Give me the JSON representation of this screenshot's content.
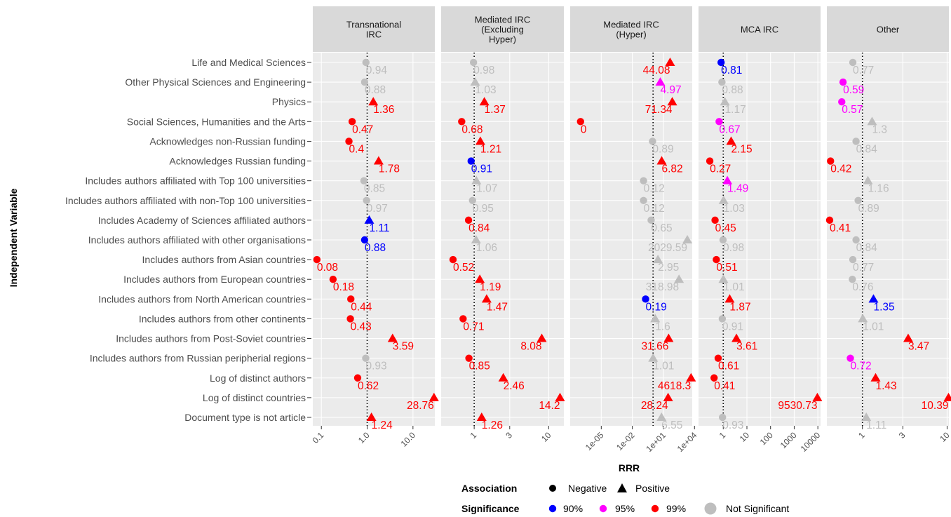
{
  "chart_data": {
    "type": "scatter",
    "y_axis_title": "Independent Variable",
    "x_axis_title": "RRR",
    "variables": [
      "Life and Medical Sciences",
      "Other Physical Sciences and Engineering",
      "Physics",
      "Social Sciences, Humanities and the Arts",
      "Acknowledges non-Russian funding",
      "Acknowledges Russian funding",
      "Includes authors affiliated with Top 100 universities",
      "Includes authors affiliated with non-Top 100 universities",
      "Includes Academy of Sciences affiliated authors",
      "Includes authors affiliated with other organisations",
      "Includes authors from Asian countries",
      "Includes authors from European countries",
      "Includes authors from North American countries",
      "Includes authors from other continents",
      "Includes authors from Post-Soviet countries",
      "Includes authors from Russian peripherial regions",
      "Log of distinct authors",
      "Log of distinct countries",
      "Document type is not article"
    ],
    "legend": {
      "association": {
        "title": "Association",
        "items": [
          {
            "label": "Negative",
            "shape": "circle"
          },
          {
            "label": "Positive",
            "shape": "triangle"
          }
        ]
      },
      "significance": {
        "title": "Significance",
        "items": [
          {
            "label": "90%",
            "color": "#0000ff"
          },
          {
            "label": "95%",
            "color": "#ff00ff"
          },
          {
            "label": "99%",
            "color": "#ff0000"
          },
          {
            "label": "Not Significant",
            "color": "#bebebe"
          }
        ]
      }
    },
    "panels": [
      {
        "title": "Transnational\nIRC",
        "scale": "log",
        "xlim": [
          0.065,
          30
        ],
        "ticks": [
          {
            "value": 0.1,
            "label": "0.1"
          },
          {
            "value": 1,
            "label": "1.0"
          },
          {
            "value": 10,
            "label": "10.0"
          }
        ],
        "points": [
          [
            0.94,
            "ns"
          ],
          [
            0.88,
            "ns"
          ],
          [
            1.36,
            "99"
          ],
          [
            0.47,
            "99"
          ],
          [
            0.4,
            "99"
          ],
          [
            1.78,
            "99"
          ],
          [
            0.85,
            "ns"
          ],
          [
            0.97,
            "ns"
          ],
          [
            1.11,
            "90"
          ],
          [
            0.88,
            "90"
          ],
          [
            0.08,
            "99"
          ],
          [
            0.18,
            "99"
          ],
          [
            0.44,
            "99"
          ],
          [
            0.43,
            "99"
          ],
          [
            3.59,
            "99"
          ],
          [
            0.93,
            "ns"
          ],
          [
            0.62,
            "99"
          ],
          [
            28.76,
            "99"
          ],
          [
            1.24,
            "99"
          ]
        ],
        "labels": [
          "0.94",
          "0.88",
          "1.36",
          "0.47",
          "0.4",
          "1.78",
          "0.85",
          "0.97",
          "1.11",
          "0.88",
          "0.08",
          "0.18",
          "0.44",
          "0.43",
          "3.59",
          "0.93",
          "0.62",
          "28.76",
          "1.24"
        ]
      },
      {
        "title": "Mediated IRC\n(Excluding\nHyper)",
        "scale": "log",
        "xlim": [
          0.36,
          16
        ],
        "ticks": [
          {
            "value": 1,
            "label": "1"
          },
          {
            "value": 3,
            "label": "3"
          },
          {
            "value": 10,
            "label": "10"
          }
        ],
        "points": [
          [
            0.98,
            "ns"
          ],
          [
            1.03,
            "ns"
          ],
          [
            1.37,
            "99"
          ],
          [
            0.68,
            "99"
          ],
          [
            1.21,
            "99"
          ],
          [
            0.91,
            "90"
          ],
          [
            1.07,
            "ns"
          ],
          [
            0.95,
            "ns"
          ],
          [
            0.84,
            "99"
          ],
          [
            1.06,
            "ns"
          ],
          [
            0.52,
            "99"
          ],
          [
            1.19,
            "99"
          ],
          [
            1.47,
            "99"
          ],
          [
            0.71,
            "99"
          ],
          [
            8.08,
            "99"
          ],
          [
            0.85,
            "99"
          ],
          [
            2.46,
            "99"
          ],
          [
            14.2,
            "99"
          ],
          [
            1.26,
            "99"
          ]
        ],
        "labels": [
          "0.98",
          "1.03",
          "1.37",
          "0.68",
          "1.21",
          "0.91",
          "1.07",
          "0.95",
          "0.84",
          "1.06",
          "0.52",
          "1.19",
          "1.47",
          "0.71",
          "8.08",
          "0.85",
          "2.46",
          "14.2",
          "1.26"
        ]
      },
      {
        "title": "Mediated IRC\n(Hyper)",
        "scale": "log",
        "xlim": [
          1e-08,
          6000.0
        ],
        "ticks": [
          {
            "value": 1e-05,
            "label": "1e-05"
          },
          {
            "value": 0.01,
            "label": "1e-02"
          },
          {
            "value": 10,
            "label": "1e+01"
          },
          {
            "value": 10000.0,
            "label": "1e+04"
          }
        ],
        "points": [
          [
            44.08,
            "99"
          ],
          [
            4.97,
            "95"
          ],
          [
            71.34,
            "99"
          ],
          [
            1e-07,
            "99"
          ],
          [
            0.89,
            "ns"
          ],
          [
            6.82,
            "99"
          ],
          [
            0.12,
            "ns"
          ],
          [
            0.12,
            "ns"
          ],
          [
            0.65,
            "ns"
          ],
          [
            2029.59,
            "ns"
          ],
          [
            2.95,
            "ns"
          ],
          [
            318.98,
            "ns"
          ],
          [
            0.19,
            "90"
          ],
          [
            1.6,
            "ns"
          ],
          [
            31.66,
            "99"
          ],
          [
            1.01,
            "ns"
          ],
          [
            4618.3,
            "99"
          ],
          [
            28.24,
            "99"
          ],
          [
            6.55,
            "ns"
          ]
        ],
        "labels": [
          "44.08",
          "4.97",
          "71.34",
          "0",
          "0.89",
          "6.82",
          "0.12",
          "0.12",
          "0.65",
          "2029.59",
          "2.95",
          "318.98",
          "0.19",
          "1.6",
          "31.66",
          "1.01",
          "4618.3",
          "28.24",
          "6.55"
        ]
      },
      {
        "title": "MCA IRC",
        "scale": "log",
        "xlim": [
          0.09,
          13000
        ],
        "ticks": [
          {
            "value": 1,
            "label": "1"
          },
          {
            "value": 10,
            "label": "10"
          },
          {
            "value": 100,
            "label": "100"
          },
          {
            "value": 1000,
            "label": "1000"
          },
          {
            "value": 10000,
            "label": "10000"
          }
        ],
        "points": [
          [
            0.81,
            "90"
          ],
          [
            0.88,
            "ns"
          ],
          [
            1.17,
            "ns"
          ],
          [
            0.67,
            "95"
          ],
          [
            2.15,
            "99"
          ],
          [
            0.27,
            "99"
          ],
          [
            1.49,
            "95"
          ],
          [
            1.03,
            "ns"
          ],
          [
            0.45,
            "99"
          ],
          [
            0.98,
            "ns"
          ],
          [
            0.51,
            "99"
          ],
          [
            1.01,
            "ns"
          ],
          [
            1.87,
            "99"
          ],
          [
            0.91,
            "ns"
          ],
          [
            3.61,
            "99"
          ],
          [
            0.61,
            "99"
          ],
          [
            0.41,
            "99"
          ],
          [
            9530.73,
            "99"
          ],
          [
            0.93,
            "ns"
          ]
        ],
        "labels": [
          "0.81",
          "0.88",
          "1.17",
          "0.67",
          "2.15",
          "0.27",
          "1.49",
          "1.03",
          "0.45",
          "0.98",
          "0.51",
          "1.01",
          "1.87",
          "0.91",
          "3.61",
          "0.61",
          "0.41",
          "9530.73",
          "0.93"
        ]
      },
      {
        "title": "Other",
        "scale": "log",
        "xlim": [
          0.38,
          10.5
        ],
        "ticks": [
          {
            "value": 1,
            "label": "1"
          },
          {
            "value": 3,
            "label": "3"
          },
          {
            "value": 10,
            "label": "10"
          }
        ],
        "points": [
          [
            0.77,
            "ns"
          ],
          [
            0.59,
            "95"
          ],
          [
            0.57,
            "95"
          ],
          [
            1.3,
            "ns"
          ],
          [
            0.84,
            "ns"
          ],
          [
            0.42,
            "99"
          ],
          [
            1.16,
            "ns"
          ],
          [
            0.89,
            "ns"
          ],
          [
            0.41,
            "99"
          ],
          [
            0.84,
            "ns"
          ],
          [
            0.77,
            "ns"
          ],
          [
            0.76,
            "ns"
          ],
          [
            1.35,
            "90"
          ],
          [
            1.01,
            "ns"
          ],
          [
            3.47,
            "99"
          ],
          [
            0.72,
            "95"
          ],
          [
            1.43,
            "99"
          ],
          [
            10.39,
            "99"
          ],
          [
            1.11,
            "ns"
          ]
        ],
        "labels": [
          "0.77",
          "0.59",
          "0.57",
          "1.3",
          "0.84",
          "0.42",
          "1.16",
          "0.89",
          "0.41",
          "0.84",
          "0.77",
          "0.76",
          "1.35",
          "1.01",
          "3.47",
          "0.72",
          "1.43",
          "10.39",
          "1.11"
        ]
      }
    ],
    "reference_line": 1,
    "colors": {
      "90": "#0000ff",
      "95": "#ff00ff",
      "99": "#ff0000",
      "ns": "#bebebe"
    },
    "panel_background": "#ebebeb",
    "strip_background": "#d9d9d9",
    "grid": true
  }
}
